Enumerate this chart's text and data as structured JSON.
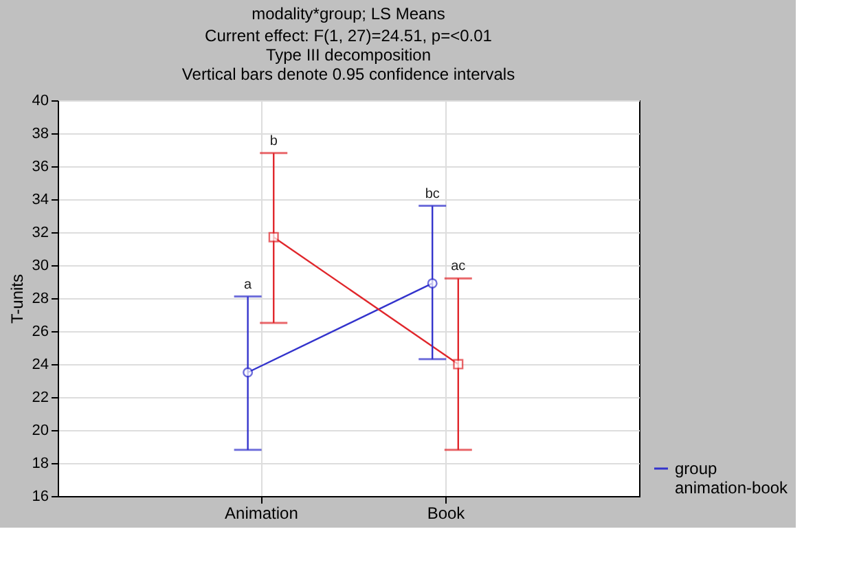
{
  "chart_data": {
    "type": "line",
    "title": "modality*group; LS Means",
    "subtitle": [
      "Current effect: F(1, 27)=24.51, p=<0.01",
      "Type III decomposition",
      "Vertical bars denote 0.95 confidence intervals"
    ],
    "ylabel": "T-units",
    "categories": [
      "Animation",
      "Book"
    ],
    "series": [
      {
        "name": "group animation-book",
        "color": "#3333cc",
        "marker": "circle",
        "values": [
          23.5,
          28.9
        ],
        "errors": [
          [
            18.8,
            28.1
          ],
          [
            24.3,
            33.6
          ]
        ]
      },
      {
        "color": "#e0262b",
        "marker": "square",
        "values": [
          31.7,
          24.0
        ],
        "errors": [
          [
            26.5,
            36.8
          ],
          [
            18.8,
            29.2
          ]
        ]
      }
    ],
    "annotations": [
      {
        "text": "a",
        "x": "Animation",
        "y": 28.1
      },
      {
        "text": "b",
        "x": "Animation",
        "y": 36.8
      },
      {
        "text": "bc",
        "x": "Book",
        "y": 33.6
      },
      {
        "text": "ac",
        "x": "Book",
        "y": 29.2
      }
    ],
    "ylim": [
      16,
      40
    ],
    "yticks": [
      16,
      18,
      20,
      22,
      24,
      26,
      28,
      30,
      32,
      34,
      36,
      38,
      40
    ],
    "grid": true,
    "legend": "bottom right"
  }
}
